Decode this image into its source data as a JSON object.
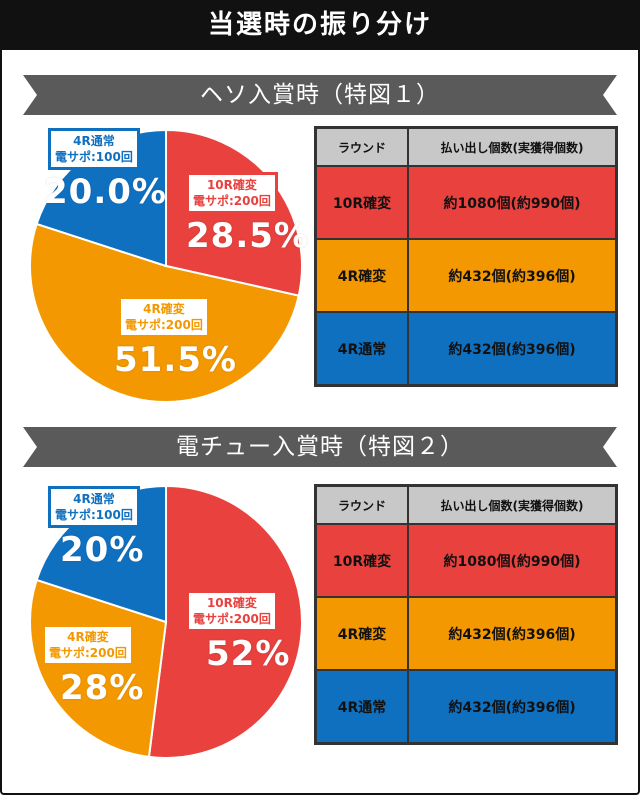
{
  "title": "当選時の振り分け",
  "colors": {
    "red": "#e8413e",
    "orange": "#f39800",
    "blue": "#1070c0",
    "header_gray": "#c8c8c8",
    "ribbon_gray": "#5a5a5a"
  },
  "sections": [
    {
      "heading": "ヘソ入賞時（特図１）",
      "table": {
        "headers": [
          "ラウンド",
          "払い出し個数(実獲得個数)"
        ],
        "rows": [
          {
            "round": "10R確変",
            "payout": "約1080個(約990個)",
            "color": "#e8413e"
          },
          {
            "round": "4R確変",
            "payout": "約432個(約396個)",
            "color": "#f39800"
          },
          {
            "round": "4R通常",
            "payout": "約432個(約396個)",
            "color": "#1070c0"
          }
        ]
      }
    },
    {
      "heading": "電チュー入賞時（特図２）",
      "table": {
        "headers": [
          "ラウンド",
          "払い出し個数(実獲得個数)"
        ],
        "rows": [
          {
            "round": "10R確変",
            "payout": "約1080個(約990個)",
            "color": "#e8413e"
          },
          {
            "round": "4R確変",
            "payout": "約432個(約396個)",
            "color": "#f39800"
          },
          {
            "round": "4R通常",
            "payout": "約432個(約396個)",
            "color": "#1070c0"
          }
        ]
      }
    }
  ],
  "chart_data": [
    {
      "type": "pie",
      "title": "ヘソ入賞時（特図１）",
      "slices": [
        {
          "label": "10R確変 電サポ:200回",
          "line1": "10R確変",
          "line2": "電サポ:200回",
          "value": 28.5,
          "display": "28.5%",
          "color": "#e8413e"
        },
        {
          "label": "4R確変 電サポ:200回",
          "line1": "4R確変",
          "line2": "電サポ:200回",
          "value": 51.5,
          "display": "51.5%",
          "color": "#f39800"
        },
        {
          "label": "4R通常 電サポ:100回",
          "line1": "4R通常",
          "line2": "電サポ:100回",
          "value": 20.0,
          "display": "20.0%",
          "color": "#1070c0"
        }
      ]
    },
    {
      "type": "pie",
      "title": "電チュー入賞時（特図２）",
      "slices": [
        {
          "label": "10R確変 電サポ:200回",
          "line1": "10R確変",
          "line2": "電サポ:200回",
          "value": 52,
          "display": "52%",
          "color": "#e8413e"
        },
        {
          "label": "4R確変 電サポ:200回",
          "line1": "4R確変",
          "line2": "電サポ:200回",
          "value": 28,
          "display": "28%",
          "color": "#f39800"
        },
        {
          "label": "4R通常 電サポ:100回",
          "line1": "4R通常",
          "line2": "電サポ:100回",
          "value": 20,
          "display": "20%",
          "color": "#1070c0"
        }
      ]
    }
  ]
}
